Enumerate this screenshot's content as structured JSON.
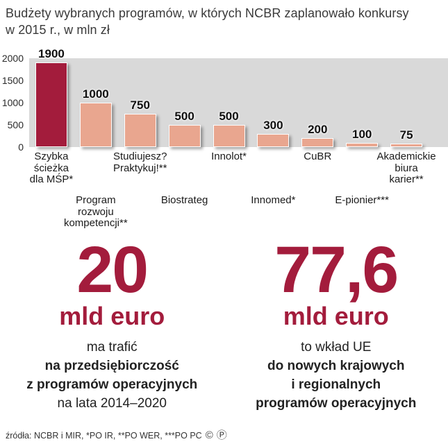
{
  "header": {
    "title_line1": "Budżety wybranych programów, w których NCBR zaplanowało konkursy",
    "title_line2": "w 2015 r., w mln zł"
  },
  "chart_data": {
    "type": "bar",
    "title": "Budżety wybranych programów, w których NCBR zaplanowało konkursy w 2015 r., w mln zł",
    "unit": "mln zł",
    "categories": [
      "Szybka ścieżka dla MŚP*",
      "Program rozwoju kompetencji**",
      "Studiujesz? Praktykuj!**",
      "Biostrateg",
      "Innolot*",
      "Innomed*",
      "CuBR",
      "E-pionier***",
      "Akademickie biura karier**"
    ],
    "category_lines": [
      [
        "Szybka",
        "ścieżka",
        "dla MŚP*"
      ],
      [
        "Program",
        "rozwoju",
        "kompetencji**"
      ],
      [
        "Studiujesz?",
        "Praktykuj!**"
      ],
      [
        "Biostrateg"
      ],
      [
        "Innolot*"
      ],
      [
        "Innomed*"
      ],
      [
        "CuBR"
      ],
      [
        "E-pionier***"
      ],
      [
        "Akademickie",
        "biura karier**"
      ]
    ],
    "values": [
      1900,
      1000,
      750,
      500,
      500,
      300,
      200,
      100,
      75
    ],
    "highlight_index": 0,
    "colors": {
      "highlight": "#a31c3c",
      "default": "#e9a68f",
      "plot_background": "#d9d9d9"
    },
    "y_ticks": [
      2000,
      1500,
      1000,
      500,
      0
    ],
    "ylim": [
      0,
      2000
    ],
    "grid": false,
    "legend": false
  },
  "stats": [
    {
      "number": "20",
      "unit": "mld euro",
      "lines": [
        "ma trafić",
        "na przedsiębiorczość",
        "z programów operacyjnych",
        "na lata 2014–2020"
      ]
    },
    {
      "number": "77,6",
      "unit": "mld euro",
      "lines": [
        "to wkład UE",
        "do nowych krajowych",
        "i regionalnych",
        "programów operacyjnych"
      ]
    }
  ],
  "footer": {
    "source": "źródła: NCBR i MIR, *PO IR, **PO WER, ***PO PC",
    "copyright_mark": "©",
    "public_mark": "Ⓟ"
  }
}
